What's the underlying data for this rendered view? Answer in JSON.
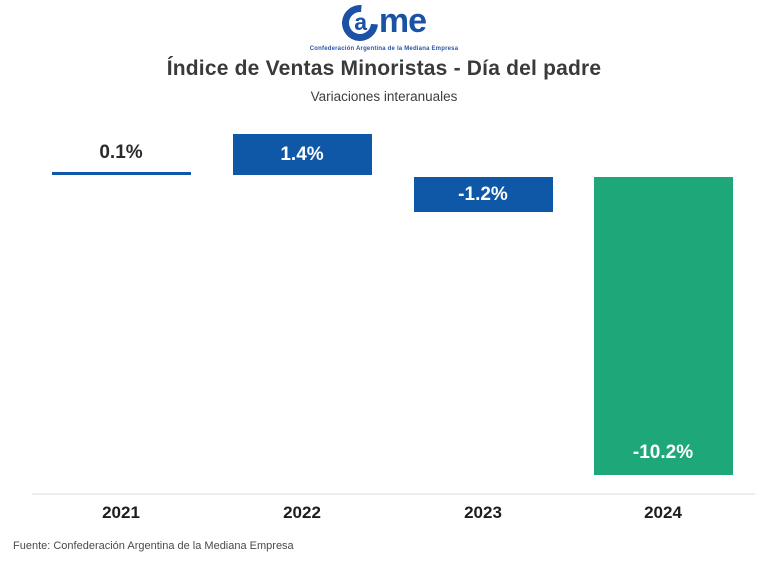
{
  "logo": {
    "name": "Came",
    "letter_a": "a",
    "letters_me": "me",
    "tagline": "Confederación Argentina de la Mediana Empresa",
    "color": "#1b52a5"
  },
  "header": {
    "title": "Índice de Ventas Minoristas - Día del padre",
    "subtitle": "Variaciones interanuales"
  },
  "footer": {
    "source": "Fuente: Confederación Argentina de la Mediana Empresa"
  },
  "chart_data": {
    "type": "bar",
    "title": "Índice de Ventas Minoristas - Día del padre",
    "subtitle": "Variaciones interanuales",
    "categories": [
      "2021",
      "2022",
      "2023",
      "2024"
    ],
    "values": [
      0.1,
      1.4,
      -1.2,
      -10.2
    ],
    "labels": [
      "0.1%",
      "1.4%",
      "-1.2%",
      "-10.2%"
    ],
    "xlabel": "",
    "ylabel": "",
    "unit": "%",
    "grid": false,
    "legend": false,
    "baseline": 0,
    "bar_colors": [
      "#0f58a8",
      "#0f58a8",
      "#0f58a8",
      "#1ea87a"
    ],
    "label_color_inside": "#ffffff",
    "label_color_outside": "#2b2b2b",
    "axis_line_color": "#ededed"
  }
}
